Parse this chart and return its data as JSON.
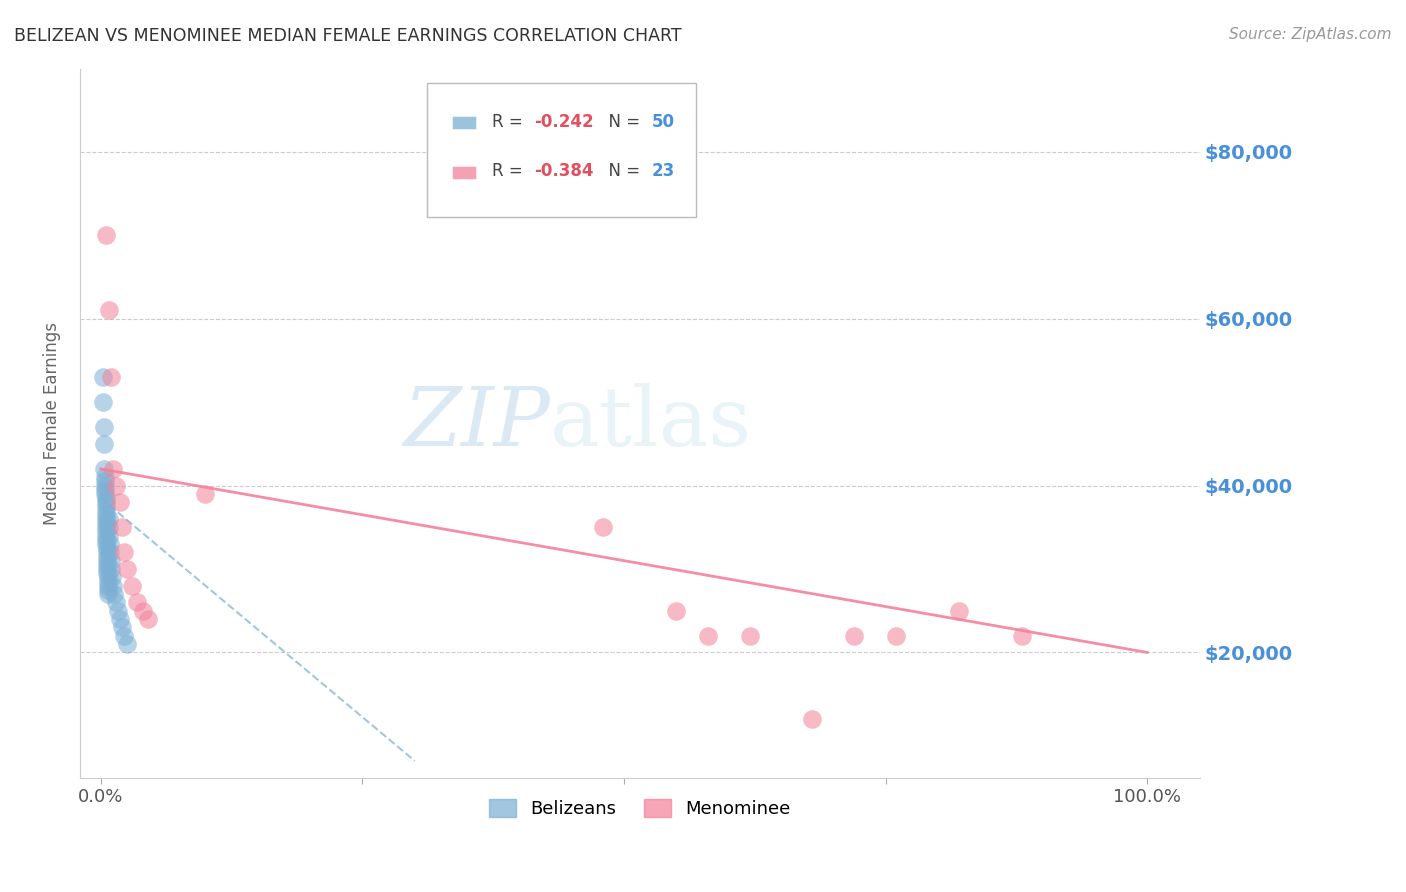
{
  "title": "BELIZEAN VS MENOMINEE MEDIAN FEMALE EARNINGS CORRELATION CHART",
  "source": "Source: ZipAtlas.com",
  "ylabel": "Median Female Earnings",
  "yticks": [
    20000,
    40000,
    60000,
    80000
  ],
  "ytick_labels": [
    "$20,000",
    "$40,000",
    "$60,000",
    "$80,000"
  ],
  "watermark": "ZIPatlas",
  "legend_label1": "Belizeans",
  "legend_label2": "Menominee",
  "blue_color": "#7bafd4",
  "pink_color": "#f4819a",
  "blue_r": "-0.242",
  "blue_n": "50",
  "pink_r": "-0.384",
  "pink_n": "23",
  "blue_scatter_x": [
    0.002,
    0.002,
    0.003,
    0.003,
    0.003,
    0.004,
    0.004,
    0.004,
    0.004,
    0.004,
    0.005,
    0.005,
    0.005,
    0.005,
    0.005,
    0.005,
    0.005,
    0.005,
    0.005,
    0.005,
    0.005,
    0.005,
    0.006,
    0.006,
    0.006,
    0.006,
    0.006,
    0.006,
    0.006,
    0.007,
    0.007,
    0.007,
    0.007,
    0.007,
    0.008,
    0.008,
    0.008,
    0.009,
    0.009,
    0.01,
    0.01,
    0.011,
    0.012,
    0.013,
    0.015,
    0.016,
    0.018,
    0.02,
    0.022,
    0.025
  ],
  "blue_scatter_y": [
    53000,
    50000,
    47000,
    45000,
    42000,
    41000,
    40500,
    40000,
    39500,
    39000,
    38500,
    38000,
    37500,
    37000,
    36500,
    36000,
    35500,
    35000,
    34500,
    34000,
    33500,
    33000,
    32500,
    32000,
    31500,
    31000,
    30500,
    30000,
    29500,
    29000,
    28500,
    28000,
    27500,
    27000,
    36000,
    35000,
    34000,
    33000,
    32000,
    31000,
    30000,
    29000,
    28000,
    27000,
    26000,
    25000,
    24000,
    23000,
    22000,
    21000
  ],
  "pink_scatter_x": [
    0.005,
    0.008,
    0.01,
    0.012,
    0.015,
    0.018,
    0.02,
    0.022,
    0.025,
    0.03,
    0.035,
    0.04,
    0.045,
    0.1,
    0.48,
    0.55,
    0.58,
    0.62,
    0.68,
    0.72,
    0.76,
    0.82,
    0.88
  ],
  "pink_scatter_y": [
    70000,
    61000,
    53000,
    42000,
    40000,
    38000,
    35000,
    32000,
    30000,
    28000,
    26000,
    25000,
    24000,
    39000,
    35000,
    25000,
    22000,
    22000,
    12000,
    22000,
    22000,
    25000,
    22000
  ],
  "blue_trend_x": [
    0.0,
    0.3
  ],
  "blue_trend_y": [
    38500,
    7000
  ],
  "pink_trend_x": [
    0.0,
    1.0
  ],
  "pink_trend_y": [
    42000,
    20000
  ],
  "xlim": [
    -0.02,
    1.05
  ],
  "ylim": [
    5000,
    90000
  ],
  "background_color": "#ffffff",
  "grid_color": "#cccccc",
  "title_color": "#333333",
  "axis_label_color": "#666666",
  "ytick_color": "#4a90d9",
  "source_color": "#999999"
}
